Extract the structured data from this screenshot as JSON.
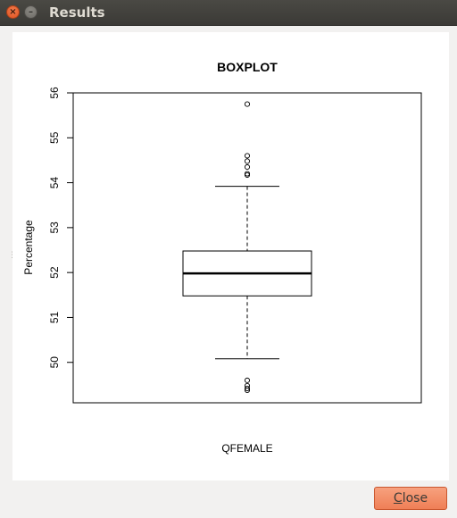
{
  "window": {
    "title": "Results"
  },
  "chart_data": {
    "type": "boxplot",
    "title": "BOXPLOT",
    "xlabel": "QFEMALE",
    "ylabel": "Percentage",
    "ylim": [
      49.1,
      56
    ],
    "yticks": [
      "50",
      "51",
      "52",
      "53",
      "54",
      "55",
      "56"
    ],
    "ytick_values": [
      50,
      51,
      52,
      53,
      54,
      55,
      56
    ],
    "series": [
      {
        "lower_whisker": 50.08,
        "q1": 51.48,
        "median": 51.98,
        "q3": 52.48,
        "upper_whisker": 53.92,
        "outliers": [
          55.75,
          54.6,
          54.48,
          54.35,
          54.2,
          54.17,
          49.6,
          49.48,
          49.42,
          49.38
        ]
      }
    ],
    "grid": false,
    "legend": "none"
  },
  "buttons": {
    "close_prefix": "C",
    "close_rest": "lose"
  }
}
